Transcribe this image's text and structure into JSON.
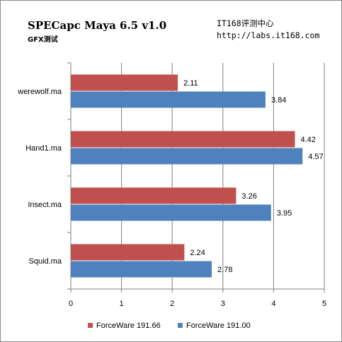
{
  "header": {
    "title": "SPECapc Maya 6.5 v1.0",
    "subtitle": "GFX测试",
    "source_name": "IT168评测中心",
    "source_url": "http://labs.it168.com"
  },
  "chart_data": {
    "type": "bar",
    "orientation": "horizontal",
    "categories": [
      "werewolf.ma",
      "Hand1.ma",
      "Insect.ma",
      "Squid.ma"
    ],
    "series": [
      {
        "name": "ForceWare 191.66",
        "color": "#c0504d",
        "values": [
          2.11,
          4.42,
          3.26,
          2.24
        ]
      },
      {
        "name": "ForceWare 191.00",
        "color": "#4f81bd",
        "values": [
          3.84,
          4.57,
          3.95,
          2.78
        ]
      }
    ],
    "xlim": [
      0,
      5
    ],
    "xticks": [
      "0",
      "1",
      "2",
      "3",
      "4",
      "5"
    ],
    "grid": true,
    "legend_position": "bottom",
    "value_labels": [
      "2.11",
      "4.42",
      "3.26",
      "2.24",
      "3.84",
      "4.57",
      "3.95",
      "2.78"
    ]
  }
}
